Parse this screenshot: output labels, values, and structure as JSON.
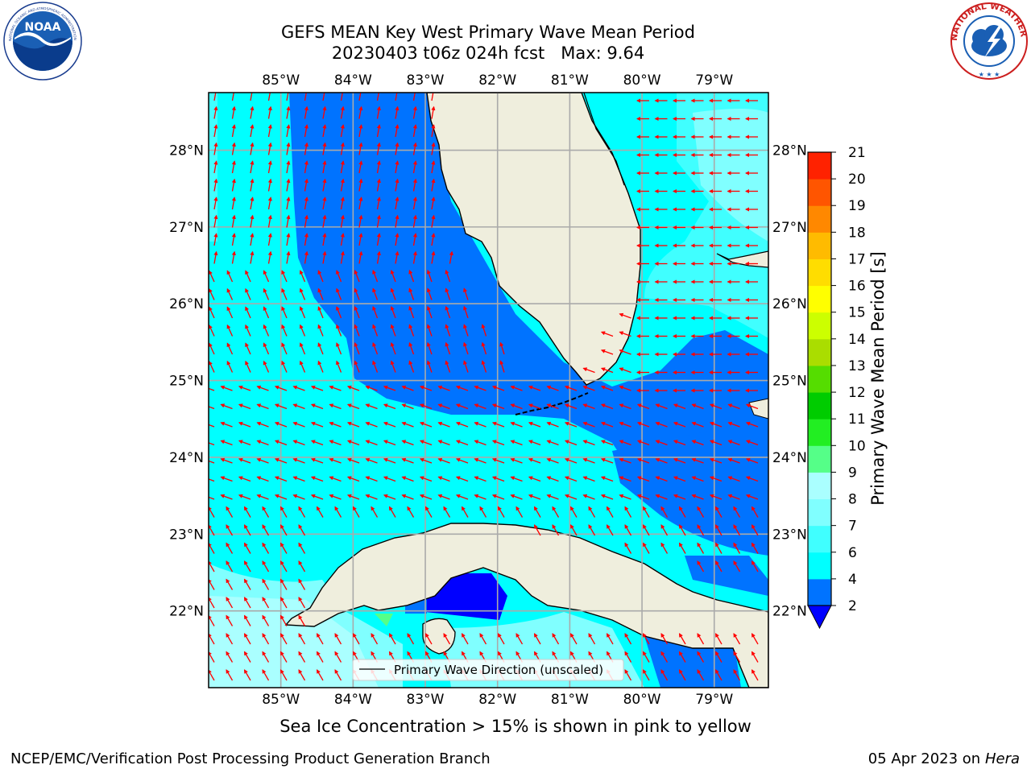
{
  "header": {
    "title": "GEFS MEAN Key West Primary Wave Mean Period",
    "subtitle_run": "20230403 t06z 024h fcst",
    "subtitle_max": "Max: 9.64"
  },
  "logos": {
    "left": {
      "text": "NOAA",
      "ring_text": "NATIONAL OCEANIC AND ATMOSPHERIC ADMINISTRATION · U.S. DEPARTMENT OF COMMERCE",
      "icon": "noaa-logo"
    },
    "right": {
      "ring_text": "NATIONAL WEATHER SERVICE",
      "icon": "nws-logo"
    }
  },
  "map": {
    "lon_ticks": [
      "85°W",
      "84°W",
      "83°W",
      "82°W",
      "81°W",
      "80°W",
      "79°W"
    ],
    "lat_ticks": [
      "22°N",
      "23°N",
      "24°N",
      "25°N",
      "26°N",
      "27°N",
      "28°N"
    ],
    "lon_values": [
      -85,
      -84,
      -83,
      -82,
      -81,
      -80,
      -79
    ],
    "lat_values": [
      22,
      23,
      24,
      25,
      26,
      27,
      28
    ],
    "extent": {
      "lon_min": -86.0,
      "lon_max": -78.25,
      "lat_min": 21.0,
      "lat_max": 28.75
    },
    "land_color": "#efeedd",
    "legend_label": "Primary Wave Direction (unscaled)",
    "arrow_color": "#ff0000"
  },
  "colorbar": {
    "label": "Primary Wave Mean Period [s]",
    "ticks": [
      "2",
      "4",
      "6",
      "7",
      "8",
      "9",
      "10",
      "11",
      "12",
      "13",
      "14",
      "15",
      "16",
      "17",
      "18",
      "19",
      "20",
      "21"
    ],
    "colors": [
      "#0073ff",
      "#00ffff",
      "#40ffff",
      "#80ffff",
      "#aaffff",
      "#55ff88",
      "#22ee22",
      "#00cc00",
      "#55dd00",
      "#aadd00",
      "#ccff00",
      "#ffff00",
      "#ffdd00",
      "#ffbb00",
      "#ff8800",
      "#ff5500",
      "#ff2200"
    ],
    "under_color": "#0000ff"
  },
  "caption": "Sea Ice Concentration > 15% is shown in pink to yellow",
  "footer": {
    "left": "NCEP/EMC/Verification Post Processing Product Generation Branch",
    "date": "05 Apr 2023 on ",
    "machine": "Hera"
  }
}
